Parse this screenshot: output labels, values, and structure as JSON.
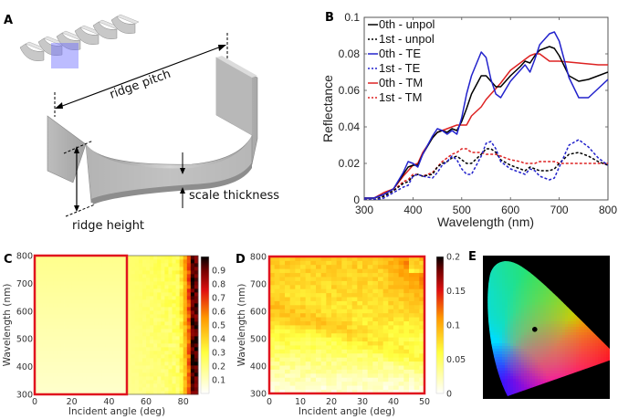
{
  "panels": {
    "A": {
      "label": "A",
      "annotations": [
        "ridge pitch",
        "scale thickness",
        "ridge height"
      ]
    },
    "B": {
      "label": "B"
    },
    "C": {
      "label": "C"
    },
    "D": {
      "label": "D"
    },
    "E": {
      "label": "E"
    }
  },
  "chart_data": [
    {
      "panel": "B",
      "type": "line",
      "title": "",
      "xlabel": "Wavelength (nm)",
      "ylabel": "Reflectance",
      "xlim": [
        300,
        800
      ],
      "ylim": [
        0,
        0.1
      ],
      "xticks": [
        300,
        400,
        500,
        600,
        700,
        800
      ],
      "yticks": [
        0,
        0.02,
        0.04,
        0.06,
        0.08,
        0.1
      ],
      "ytick_labels": [
        "0",
        "0.02",
        "0.04",
        "0.06",
        "0.08",
        "0.1"
      ],
      "grid": false,
      "legend_position": "top-left",
      "x": [
        300,
        320,
        340,
        360,
        380,
        390,
        400,
        410,
        420,
        440,
        450,
        460,
        470,
        480,
        490,
        500,
        510,
        520,
        540,
        550,
        560,
        570,
        580,
        600,
        620,
        630,
        640,
        650,
        660,
        680,
        690,
        700,
        720,
        740,
        760,
        780,
        800
      ],
      "series": [
        {
          "name": "0th - unpol",
          "color": "#000000",
          "dash": "solid",
          "values": [
            0.001,
            0.001,
            0.003,
            0.006,
            0.014,
            0.018,
            0.019,
            0.019,
            0.025,
            0.034,
            0.037,
            0.038,
            0.037,
            0.039,
            0.038,
            0.043,
            0.05,
            0.058,
            0.068,
            0.068,
            0.065,
            0.062,
            0.062,
            0.068,
            0.073,
            0.076,
            0.075,
            0.079,
            0.082,
            0.084,
            0.083,
            0.079,
            0.068,
            0.065,
            0.066,
            0.068,
            0.07
          ]
        },
        {
          "name": "1st - unpol",
          "color": "#000000",
          "dash": "dashed",
          "values": [
            0.0,
            0.0,
            0.002,
            0.005,
            0.009,
            0.01,
            0.013,
            0.014,
            0.013,
            0.014,
            0.018,
            0.02,
            0.021,
            0.023,
            0.024,
            0.022,
            0.02,
            0.02,
            0.025,
            0.028,
            0.028,
            0.026,
            0.022,
            0.019,
            0.017,
            0.016,
            0.018,
            0.017,
            0.016,
            0.016,
            0.017,
            0.02,
            0.025,
            0.026,
            0.024,
            0.021,
            0.019
          ]
        },
        {
          "name": "0th - TE",
          "color": "#2222cc",
          "dash": "solid",
          "values": [
            0.001,
            0.001,
            0.003,
            0.006,
            0.015,
            0.021,
            0.02,
            0.018,
            0.025,
            0.035,
            0.039,
            0.038,
            0.036,
            0.038,
            0.036,
            0.045,
            0.058,
            0.068,
            0.081,
            0.078,
            0.066,
            0.058,
            0.056,
            0.065,
            0.071,
            0.074,
            0.07,
            0.077,
            0.085,
            0.091,
            0.092,
            0.087,
            0.067,
            0.056,
            0.056,
            0.061,
            0.066
          ]
        },
        {
          "name": "1st - TE",
          "color": "#2222cc",
          "dash": "dashed",
          "values": [
            0.0,
            0.0,
            0.001,
            0.004,
            0.007,
            0.008,
            0.013,
            0.014,
            0.013,
            0.012,
            0.015,
            0.019,
            0.021,
            0.024,
            0.022,
            0.017,
            0.014,
            0.014,
            0.024,
            0.031,
            0.032,
            0.028,
            0.021,
            0.017,
            0.015,
            0.014,
            0.017,
            0.016,
            0.013,
            0.011,
            0.012,
            0.018,
            0.03,
            0.033,
            0.029,
            0.023,
            0.019
          ]
        },
        {
          "name": "0th - TM",
          "color": "#dd2222",
          "dash": "solid",
          "values": [
            0.001,
            0.001,
            0.004,
            0.006,
            0.013,
            0.016,
            0.019,
            0.02,
            0.026,
            0.034,
            0.037,
            0.038,
            0.039,
            0.04,
            0.041,
            0.041,
            0.041,
            0.046,
            0.051,
            0.055,
            0.058,
            0.061,
            0.064,
            0.071,
            0.075,
            0.077,
            0.079,
            0.08,
            0.08,
            0.076,
            0.076,
            0.076,
            0.0755,
            0.075,
            0.0745,
            0.074,
            0.074
          ]
        },
        {
          "name": "1st - TM",
          "color": "#dd2222",
          "dash": "dashed",
          "values": [
            0.0,
            0.0,
            0.002,
            0.005,
            0.01,
            0.011,
            0.014,
            0.014,
            0.013,
            0.015,
            0.018,
            0.021,
            0.023,
            0.025,
            0.026,
            0.028,
            0.028,
            0.026,
            0.026,
            0.025,
            0.025,
            0.025,
            0.024,
            0.022,
            0.021,
            0.02,
            0.02,
            0.02,
            0.021,
            0.021,
            0.021,
            0.02,
            0.02,
            0.02,
            0.02,
            0.02,
            0.02
          ]
        }
      ]
    },
    {
      "panel": "C",
      "type": "heatmap",
      "xlabel": "Incident angle (deg)",
      "ylabel": "Wavelength (nm)",
      "xlim": [
        0,
        88
      ],
      "ylim": [
        300,
        800
      ],
      "xticks": [
        0,
        20,
        40,
        60,
        80
      ],
      "yticks": [
        300,
        400,
        500,
        600,
        700,
        800
      ],
      "colorbar": {
        "min": 0,
        "max": 1,
        "ticks": [
          0.1,
          0.2,
          0.3,
          0.4,
          0.5,
          0.6,
          0.7,
          0.8,
          0.9
        ],
        "colormap": "hot-reversed"
      },
      "highlight_box": {
        "x_range": [
          0,
          50
        ],
        "y_range": [
          300,
          800
        ],
        "color": "#e0141e"
      },
      "description": "Near-zero values (0.02-0.1) across most angles, rising sharply above ~80 deg to ~1.0 near 88 deg"
    },
    {
      "panel": "D",
      "type": "heatmap",
      "xlabel": "Incident angle (deg)",
      "ylabel": "Wavelength (nm)",
      "xlim": [
        0,
        50
      ],
      "ylim": [
        300,
        800
      ],
      "xticks": [
        0,
        10,
        20,
        30,
        40,
        50
      ],
      "yticks": [
        300,
        400,
        500,
        600,
        700,
        800
      ],
      "colorbar": {
        "min": 0,
        "max": 0.2,
        "ticks": [
          0,
          0.05,
          0.1,
          0.15,
          0.2
        ],
        "colormap": "hot-reversed"
      },
      "highlight_box": {
        "x_range": [
          0,
          50
        ],
        "y_range": [
          300,
          800
        ],
        "color": "#e0141e"
      },
      "description": "Low values (<0.03) below ~450 nm; ~0.07-0.1 above 550 nm; a diagonal band of higher values shifting to shorter wavelength with angle; maximum ~0.13 near 40-50 deg, 650-800 nm"
    },
    {
      "panel": "E",
      "type": "scatter",
      "description": "CIE chromaticity diagram on black background with one black marker point",
      "point": {
        "x": 0.38,
        "y": 0.38
      }
    }
  ]
}
